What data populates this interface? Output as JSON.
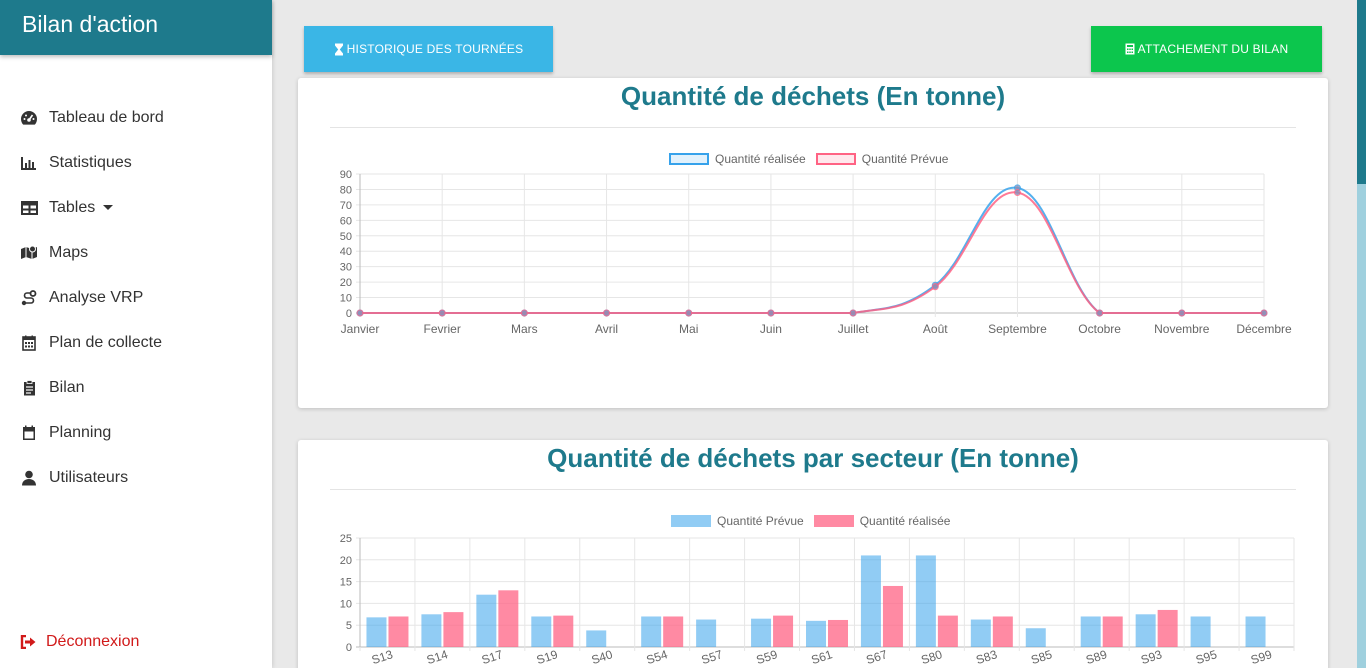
{
  "app": {
    "title": "Bilan d'action"
  },
  "sidebar": {
    "items": [
      {
        "label": "Tableau de bord",
        "icon": "speedometer-icon"
      },
      {
        "label": "Statistiques",
        "icon": "bar-chart-icon"
      },
      {
        "label": "Tables",
        "icon": "table-icon"
      },
      {
        "label": "Maps",
        "icon": "map-icon"
      },
      {
        "label": "Analyse VRP",
        "icon": "route-icon"
      },
      {
        "label": "Plan de collecte",
        "icon": "calendar-grid-icon"
      },
      {
        "label": "Bilan",
        "icon": "clipboard-icon"
      },
      {
        "label": "Planning",
        "icon": "calendar-icon"
      },
      {
        "label": "Utilisateurs",
        "icon": "user-icon"
      }
    ],
    "logout_label": "Déconnexion"
  },
  "toolbar": {
    "history_label": "HISTORIQUE DES TOURNÉES",
    "attachment_label": "ATTACHEMENT DU BILAN"
  },
  "colors": {
    "brand": "#1e7a8c",
    "history_button": "#3ab6e6",
    "attachment_button": "#0cc64d",
    "logout": "#d11a1a",
    "series_blue": "#36a2eb",
    "series_red": "#ff6384"
  },
  "chart_data": [
    {
      "type": "line",
      "title": "Quantité de déchets (En tonne)",
      "categories": [
        "Janvier",
        "Fevrier",
        "Mars",
        "Avril",
        "Mai",
        "Juin",
        "Juillet",
        "Août",
        "Septembre",
        "Octobre",
        "Novembre",
        "Décembre"
      ],
      "series": [
        {
          "name": "Quantité réalisée",
          "values": [
            0,
            0,
            0,
            0,
            0,
            0,
            0,
            18,
            81,
            0,
            0,
            0
          ]
        },
        {
          "name": "Quantité Prévue",
          "values": [
            0,
            0,
            0,
            0,
            0,
            0,
            0,
            17,
            78,
            0,
            0,
            0
          ]
        }
      ],
      "ylim": [
        0,
        90
      ],
      "yticks": [
        0,
        10,
        20,
        30,
        40,
        50,
        60,
        70,
        80,
        90
      ],
      "legend": "top-center",
      "grid": true
    },
    {
      "type": "bar",
      "title": "Quantité de déchets par secteur (En tonne)",
      "categories": [
        "S13",
        "S14",
        "S17",
        "S19",
        "S40",
        "S54",
        "S57",
        "S59",
        "S61",
        "S67",
        "S80",
        "S83",
        "S85",
        "S89",
        "S93",
        "S95",
        "S99"
      ],
      "series": [
        {
          "name": "Quantité Prévue",
          "values": [
            6.8,
            7.5,
            12,
            7,
            3.8,
            7,
            6.3,
            6.5,
            6,
            21,
            21,
            6.3,
            4.3,
            7,
            7.5,
            7,
            7
          ]
        },
        {
          "name": "Quantité réalisée",
          "values": [
            7,
            8,
            13,
            7.2,
            0,
            7,
            0,
            7.2,
            6.2,
            14,
            7.2,
            7,
            0,
            7,
            8.5,
            0,
            0
          ]
        }
      ],
      "ylim": [
        0,
        25
      ],
      "yticks": [
        0,
        5,
        10,
        15,
        20,
        25
      ],
      "legend": "top-center",
      "grid": true
    }
  ]
}
